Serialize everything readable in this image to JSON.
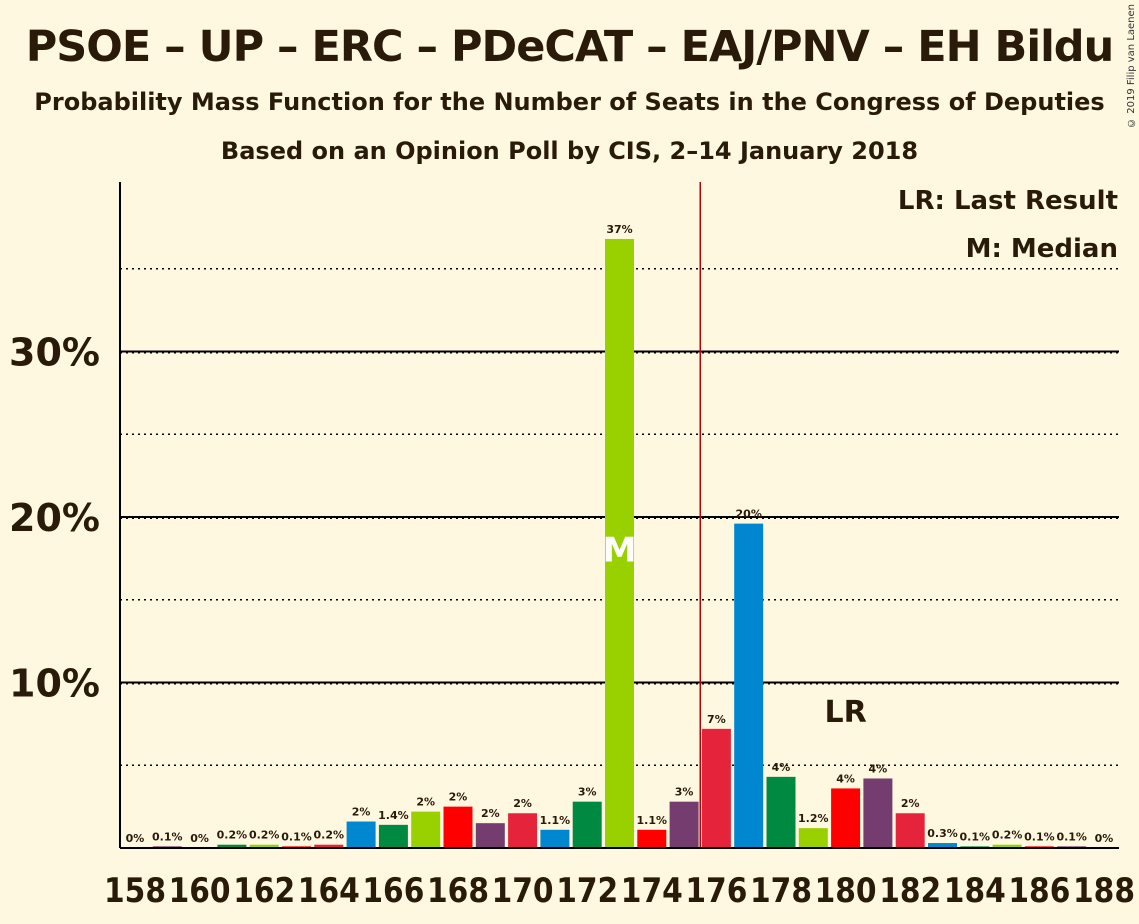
{
  "title": "PSOE – UP – ERC – PDeCAT – EAJ/PNV – EH Bildu",
  "subtitle": "Probability Mass Function for the Number of Seats in the Congress of Deputies",
  "subtitle2": "Based on an Opinion Poll by CIS, 2–14 January 2018",
  "copyright": "© 2019 Filip van Laenen",
  "legend": {
    "lr": "LR: Last Result",
    "m": "M: Median"
  },
  "chart_data": {
    "type": "bar",
    "categories": [
      158,
      159,
      160,
      161,
      162,
      163,
      164,
      165,
      166,
      167,
      168,
      169,
      170,
      171,
      172,
      173,
      174,
      175,
      176,
      177,
      178,
      179,
      180,
      181,
      182,
      183,
      184,
      185,
      186,
      187,
      188
    ],
    "values": [
      0,
      0.1,
      0,
      0.2,
      0.2,
      0.1,
      0.2,
      1.6,
      1.4,
      2.2,
      2.5,
      1.5,
      2.1,
      1.1,
      2.8,
      36.8,
      1.1,
      2.8,
      7.2,
      19.6,
      4.3,
      1.2,
      3.6,
      4.2,
      2.1,
      0.3,
      0.1,
      0.2,
      0.1,
      0.1,
      0
    ],
    "labels": [
      "0%",
      "0.1%",
      "0%",
      "0.2%",
      "0.2%",
      "0.1%",
      "0.2%",
      "2%",
      "1.4%",
      "2%",
      "2%",
      "2%",
      "2%",
      "1.1%",
      "3%",
      "37%",
      "1.1%",
      "3%",
      "7%",
      "20%",
      "4%",
      "1.2%",
      "4%",
      "4%",
      "2%",
      "0.3%",
      "0.1%",
      "0.2%",
      "0.1%",
      "0.1%",
      "0%"
    ],
    "colors": [
      "#e5243b",
      "#753c6f",
      "#0087d0",
      "#008a41",
      "#99d100",
      "#ff0000",
      "#e5243b",
      "#0087d0",
      "#008a41",
      "#99d100",
      "#ff0000",
      "#753c6f",
      "#e5243b",
      "#0087d0",
      "#008a41",
      "#99d100",
      "#ff0000",
      "#753c6f",
      "#e5243b",
      "#0087d0",
      "#008a41",
      "#99d100",
      "#ff0000",
      "#753c6f",
      "#e5243b",
      "#0087d0",
      "#008a41",
      "#99d100",
      "#ff0000",
      "#753c6f",
      "#e5243b"
    ],
    "x_tick_labels": [
      "158",
      "160",
      "162",
      "164",
      "166",
      "168",
      "170",
      "172",
      "174",
      "176",
      "178",
      "180",
      "182",
      "184",
      "186",
      "188"
    ],
    "y_tick_labels": [
      "10%",
      "20%",
      "30%"
    ],
    "ylim": [
      0,
      40
    ],
    "majority_line": 176,
    "median": 173,
    "median_label": "M",
    "last_result": 180,
    "last_result_label": "LR"
  }
}
